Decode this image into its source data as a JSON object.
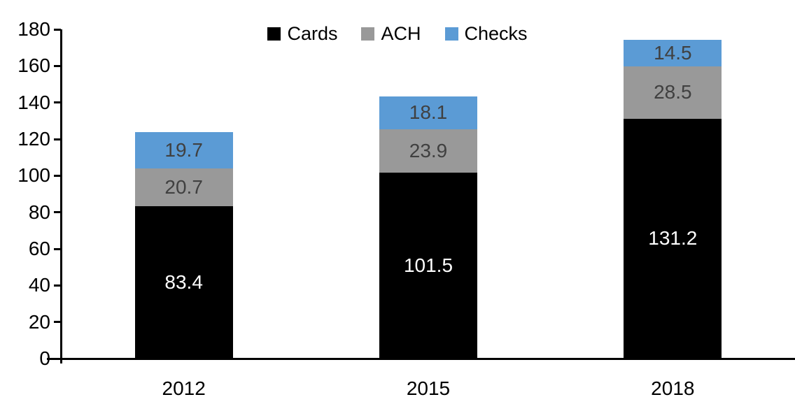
{
  "chart_data": {
    "type": "bar",
    "stacked": true,
    "title": "",
    "categories": [
      "2012",
      "2015",
      "2018"
    ],
    "series": [
      {
        "name": "Cards",
        "color": "#000000",
        "label_color": "#FFFFFF",
        "values": [
          83.4,
          101.5,
          131.2
        ]
      },
      {
        "name": "ACH",
        "color": "#999999",
        "label_color": "#404040",
        "values": [
          20.7,
          23.9,
          28.5
        ]
      },
      {
        "name": "Checks",
        "color": "#5B9BD5",
        "label_color": "#404040",
        "values": [
          19.7,
          18.1,
          14.5
        ]
      }
    ],
    "stack_totals": [
      123.8,
      143.5,
      174.2
    ],
    "xlabel": "",
    "ylabel": "",
    "ylim": [
      0,
      180
    ],
    "ytick_step": 20,
    "ytick_labels": [
      "0",
      "20",
      "40",
      "60",
      "80",
      "100",
      "120",
      "140",
      "160",
      "180"
    ],
    "legend_position": "top-center",
    "grid": false,
    "axis_color": "#000000"
  }
}
